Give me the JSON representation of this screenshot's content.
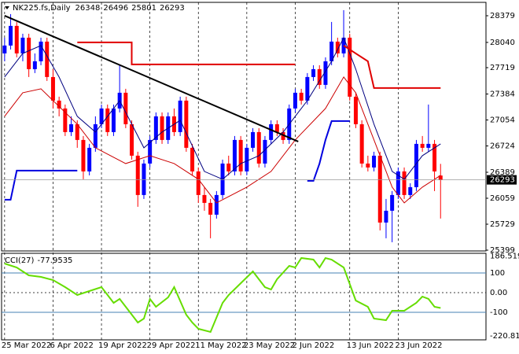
{
  "chart_data": {
    "type": "candlestick",
    "symbol": "NK225.fs,Daily",
    "up_color": "#0000ff",
    "down_color": "#ff0000",
    "candles": [
      [
        27900,
        28100,
        27800,
        28000
      ],
      [
        28000,
        28400,
        27950,
        28250
      ],
      [
        28250,
        28300,
        27850,
        27900
      ],
      [
        27900,
        28150,
        27800,
        28100
      ],
      [
        28100,
        28150,
        27600,
        27700
      ],
      [
        27700,
        27900,
        27650,
        27800
      ],
      [
        27800,
        28100,
        27750,
        28050
      ],
      [
        28050,
        28100,
        27550,
        27600
      ],
      [
        27600,
        27700,
        27200,
        27300
      ],
      [
        27300,
        27350,
        27100,
        27200
      ],
      [
        27200,
        27250,
        26850,
        26900
      ],
      [
        26900,
        27100,
        26850,
        27000
      ],
      [
        27000,
        27050,
        26700,
        26800
      ],
      [
        26800,
        26850,
        26300,
        26400
      ],
      [
        26400,
        26750,
        26350,
        26700
      ],
      [
        26700,
        27100,
        26650,
        27000
      ],
      [
        27000,
        27250,
        26950,
        27200
      ],
      [
        27200,
        27250,
        26850,
        26900
      ],
      [
        26900,
        27250,
        26850,
        27200
      ],
      [
        27200,
        27750,
        27150,
        27400
      ],
      [
        27400,
        27450,
        26950,
        27000
      ],
      [
        27000,
        27050,
        26550,
        26600
      ],
      [
        26600,
        26650,
        25950,
        26100
      ],
      [
        26100,
        26550,
        26050,
        26500
      ],
      [
        26500,
        26850,
        26450,
        26800
      ],
      [
        26800,
        27150,
        26750,
        27100
      ],
      [
        27100,
        27150,
        26750,
        26800
      ],
      [
        26800,
        27150,
        26750,
        27100
      ],
      [
        27100,
        27200,
        26850,
        26900
      ],
      [
        26900,
        27350,
        26850,
        27300
      ],
      [
        27300,
        27350,
        26650,
        26700
      ],
      [
        26700,
        26750,
        26350,
        26400
      ],
      [
        26400,
        26450,
        26000,
        26100
      ],
      [
        26100,
        26200,
        25900,
        26000
      ],
      [
        26000,
        26050,
        25550,
        25850
      ],
      [
        25850,
        26150,
        25800,
        26100
      ],
      [
        26100,
        26550,
        26050,
        26500
      ],
      [
        26500,
        26600,
        26350,
        26400
      ],
      [
        26400,
        26850,
        26350,
        26800
      ],
      [
        26800,
        26850,
        26350,
        26400
      ],
      [
        26400,
        26750,
        26350,
        26700
      ],
      [
        26700,
        26950,
        26650,
        26900
      ],
      [
        26900,
        26950,
        26450,
        26500
      ],
      [
        26500,
        26850,
        26450,
        26800
      ],
      [
        26800,
        27050,
        26750,
        27000
      ],
      [
        27000,
        27050,
        26850,
        26900
      ],
      [
        26900,
        26950,
        26750,
        26800
      ],
      [
        26800,
        27250,
        26750,
        27200
      ],
      [
        27200,
        27450,
        27150,
        27400
      ],
      [
        27400,
        27450,
        27250,
        27300
      ],
      [
        27300,
        27650,
        27250,
        27600
      ],
      [
        27600,
        27750,
        27550,
        27700
      ],
      [
        27700,
        27750,
        27450,
        27500
      ],
      [
        27500,
        27850,
        27450,
        27800
      ],
      [
        27800,
        28300,
        27750,
        28050
      ],
      [
        28050,
        28100,
        27850,
        27900
      ],
      [
        27900,
        28450,
        27850,
        28100
      ],
      [
        28100,
        28150,
        27300,
        27350
      ],
      [
        27350,
        27400,
        26950,
        27000
      ],
      [
        27000,
        27050,
        26450,
        26500
      ],
      [
        26500,
        26600,
        26400,
        26450
      ],
      [
        26450,
        26650,
        26400,
        26600
      ],
      [
        26600,
        26650,
        25650,
        25750
      ],
      [
        25750,
        26050,
        25550,
        25900
      ],
      [
        25900,
        26150,
        25500,
        26100
      ],
      [
        26100,
        26450,
        26050,
        26400
      ],
      [
        26400,
        26450,
        26050,
        26100
      ],
      [
        26100,
        26250,
        26050,
        26200
      ],
      [
        26200,
        26800,
        26150,
        26750
      ],
      [
        26750,
        26850,
        26650,
        26700
      ],
      [
        26700,
        27250,
        26650,
        26750
      ],
      [
        26750,
        26800,
        26150,
        26400
      ],
      [
        26348,
        26496,
        25801,
        26293
      ]
    ],
    "overlays": [
      {
        "color": "#000080",
        "width": 1,
        "x": [
          0,
          3,
          6,
          9,
          12,
          15,
          19,
          23,
          26,
          29,
          33,
          36,
          39,
          42,
          46,
          50,
          54,
          56,
          58,
          61,
          64,
          66,
          69,
          72
        ],
        "values": [
          27600,
          27900,
          28000,
          27600,
          27100,
          26900,
          27300,
          26700,
          26900,
          27050,
          26400,
          26300,
          26500,
          26600,
          26900,
          27300,
          27800,
          28100,
          27700,
          27000,
          26400,
          26300,
          26600,
          26750
        ]
      },
      {
        "color": "#cc0000",
        "width": 1,
        "x": [
          0,
          3,
          6,
          12,
          15,
          20,
          24,
          28,
          32,
          35,
          40,
          44,
          48,
          53,
          56,
          58,
          61,
          64,
          66,
          69,
          72
        ],
        "values": [
          27100,
          27400,
          27450,
          27000,
          26700,
          26500,
          26600,
          26500,
          26300,
          26000,
          26200,
          26400,
          26800,
          27200,
          27600,
          27400,
          26800,
          26200,
          26000,
          26200,
          26350
        ]
      },
      {
        "color": "#e00000",
        "width": 2,
        "x": [
          12,
          21,
          21,
          48,
          52,
          56,
          58,
          60,
          61,
          72
        ],
        "values": [
          28040,
          28040,
          27760,
          27760,
          null,
          28000,
          27900,
          27800,
          27460,
          27460
        ]
      },
      {
        "color": "#0000e0",
        "width": 2,
        "x": [
          0,
          1,
          2,
          12,
          30,
          50,
          51,
          52,
          53,
          54,
          57
        ],
        "values": [
          26040,
          26040,
          26410,
          26410,
          null,
          26280,
          26280,
          26500,
          26800,
          27040,
          27040
        ]
      },
      {
        "color": "#000000",
        "width": 2,
        "x": [
          0,
          48.5
        ],
        "values": [
          28380,
          26780
        ]
      }
    ],
    "ylim": [
      25399,
      28529
    ],
    "yticks": [
      28379,
      28040,
      27719,
      27384,
      27054,
      26724,
      26389,
      26059,
      25729,
      25399
    ],
    "xlim": [
      -0.5,
      79.5
    ],
    "xticks": [
      {
        "value": 0,
        "label": "25 Mar 2022"
      },
      {
        "value": 8,
        "label": "6 Apr 2022"
      },
      {
        "value": 16,
        "label": "19 Apr 2022"
      },
      {
        "value": 24,
        "label": "29 Apr 2022"
      },
      {
        "value": 32,
        "label": "11 May 2022"
      },
      {
        "value": 40,
        "label": "23 May 2022"
      },
      {
        "value": 48,
        "label": "2 Jun 2022"
      },
      {
        "value": 57,
        "label": "13 Jun 2022"
      },
      {
        "value": 65,
        "label": "23 Jun 2022"
      }
    ],
    "indicator": {
      "label": "CCI(27)",
      "color": "#66dd00",
      "x": [
        0,
        2,
        4,
        6,
        8,
        10,
        12,
        14,
        16,
        18,
        19,
        22,
        23,
        24,
        25,
        27,
        28,
        30,
        31,
        32,
        34,
        36,
        37,
        39,
        41,
        43,
        44,
        45,
        47,
        48,
        49,
        51,
        52,
        53,
        54,
        56,
        58,
        60,
        61,
        63,
        64,
        66,
        68,
        69,
        70,
        71,
        72
      ],
      "values": [
        148,
        128,
        88,
        80,
        64,
        28,
        -12,
        8,
        28,
        -52,
        -32,
        -152,
        -132,
        -32,
        -72,
        -24,
        28,
        -112,
        -152,
        -184,
        -200,
        -52,
        -12,
        48,
        108,
        28,
        16,
        68,
        136,
        128,
        176,
        168,
        128,
        176,
        168,
        128,
        -40,
        -72,
        -132,
        -140,
        -92,
        -92,
        -52,
        -20,
        -32,
        -72,
        -77.9535
      ],
      "levels": [
        100,
        -100
      ],
      "level_color": "#4682b4",
      "ylim": [
        -240,
        200
      ],
      "yticks": [
        {
          "value": 186.5196,
          "label": "186.5196"
        },
        100,
        {
          "value": 0,
          "label": "0.00"
        },
        -100,
        -220.811
      ]
    }
  }
}
